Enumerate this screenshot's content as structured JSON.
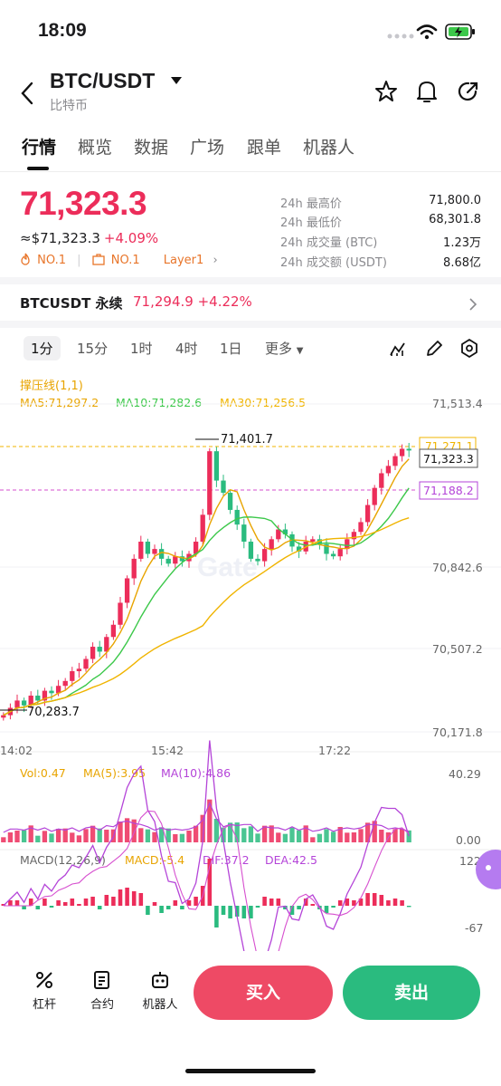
{
  "status_bar": {
    "time": "18:09"
  },
  "header": {
    "pair": "BTC/USDT",
    "subtitle": "比特币"
  },
  "tabs": [
    "行情",
    "概览",
    "数据",
    "广场",
    "跟单",
    "机器人"
  ],
  "ticker": {
    "price": "71,323.3",
    "approx_price": "≈$71,323.3",
    "change": "+4.09%",
    "tag_1": "NO.1",
    "tag_2": "NO.1",
    "tag_3": "Layer1",
    "stats": [
      {
        "label": "24h 最高价",
        "value": "71,800.0"
      },
      {
        "label": "24h 最低价",
        "value": "68,301.8"
      },
      {
        "label": "24h 成交量 (BTC)",
        "value": "1.23万"
      },
      {
        "label": "24h 成交额 (USDT)",
        "value": "8.68亿"
      }
    ]
  },
  "perpetual": {
    "name": "BTCUSDT 永续",
    "price": "71,294.9",
    "change": "+4.22%"
  },
  "intervals": [
    "1分",
    "15分",
    "1时",
    "4时",
    "1日",
    "更多"
  ],
  "indicators": {
    "sr_line": "撑压线(1,1)",
    "ma5": "MA5:71,297.2",
    "ma10": "MA10:71,282.6",
    "ma30": "MA30:71,256.5",
    "vol": "Vol:0.47",
    "vol_ma5": "MA(5):3.95",
    "vol_ma10": "MA(10):4.86",
    "macd_title": "MACD(12,26,9)",
    "macd": "MACD:-5.4",
    "dif": "DIF:37.2",
    "dea": "DEA:42.5"
  },
  "colors": {
    "up": "#ec2d5a",
    "down": "#2abb7f",
    "ma5": "#e8a400",
    "ma10": "#3cc84a",
    "ma30": "#f0b400",
    "accent_purple": "#b444d8"
  },
  "chart_data": {
    "type": "candlestick",
    "price_axis_ticks": [
      "71,513.4",
      "70,842.6",
      "70,507.2",
      "70,171.8"
    ],
    "time_axis_ticks": [
      "14:02",
      "15:42",
      "17:22"
    ],
    "ylim": [
      70171.8,
      71513.4
    ],
    "annotations": {
      "high_marker": "71,401.7",
      "low_marker": "70,283.7",
      "current": "71,323.3",
      "resistance": "71,271.1",
      "support": "71,188.2"
    },
    "close_series": [
      70240,
      70270,
      70300,
      70280,
      70320,
      70300,
      70340,
      70330,
      70360,
      70380,
      70420,
      70430,
      70470,
      70520,
      70500,
      70560,
      70610,
      70700,
      70800,
      70880,
      70950,
      70900,
      70920,
      70880,
      70860,
      70890,
      70870,
      70900,
      70950,
      71060,
      71320,
      71200,
      71150,
      71080,
      71020,
      70950,
      70880,
      70870,
      70920,
      70960,
      71000,
      70980,
      70930,
      70910,
      70950,
      70960,
      70940,
      70900,
      70890,
      70920,
      70960,
      70990,
      71030,
      71100,
      71170,
      71230,
      71260,
      71300,
      71330,
      71323
    ],
    "volume_axis_ticks": [
      "40.29",
      "0.00"
    ],
    "macd_axis_ticks": [
      "122.9",
      "-67"
    ]
  },
  "toolbar": {
    "leverage": "杠杆",
    "contract": "合约",
    "robot": "机器人",
    "buy": "买入",
    "sell": "卖出"
  }
}
